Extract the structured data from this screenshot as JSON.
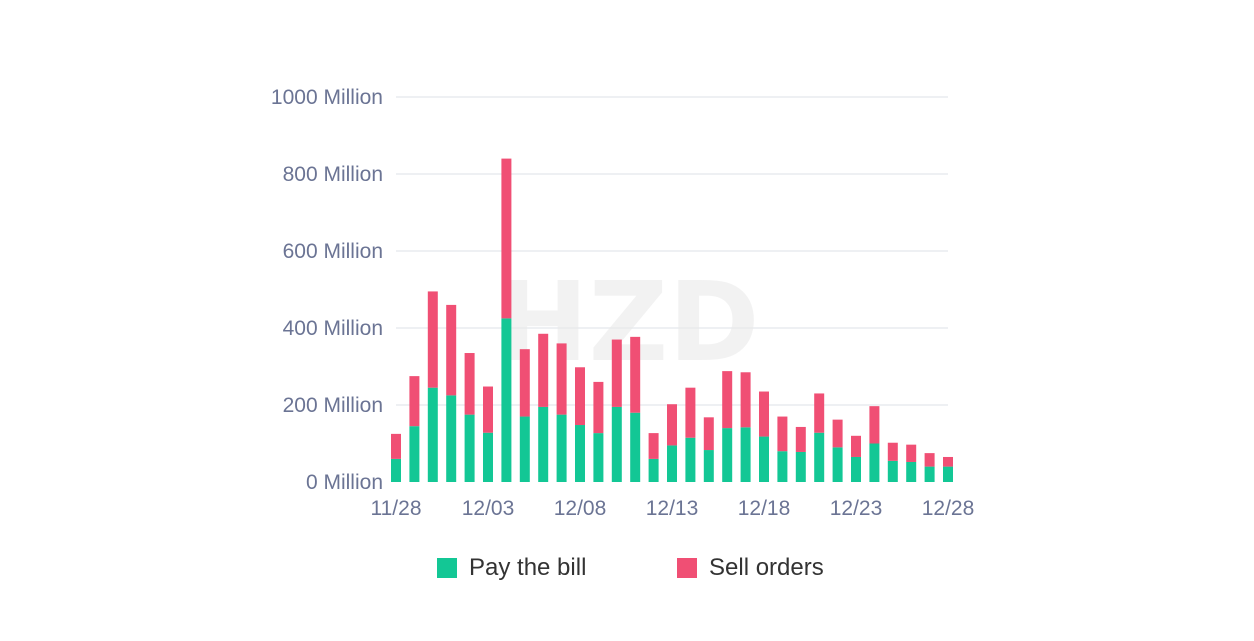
{
  "chart_data": {
    "type": "bar",
    "stacked": true,
    "x": [
      "11/28",
      "11/29",
      "11/30",
      "12/01",
      "12/02",
      "12/03",
      "12/04",
      "12/05",
      "12/06",
      "12/07",
      "12/08",
      "12/09",
      "12/10",
      "12/11",
      "12/12",
      "12/13",
      "12/14",
      "12/15",
      "12/16",
      "12/17",
      "12/18",
      "12/19",
      "12/20",
      "12/21",
      "12/22",
      "12/23",
      "12/24",
      "12/25",
      "12/26",
      "12/27",
      "12/28"
    ],
    "x_tick_labels": [
      "11/28",
      "12/03",
      "12/08",
      "12/13",
      "12/18",
      "12/23",
      "12/28"
    ],
    "series": [
      {
        "name": "Pay the bill",
        "color": "#13c795",
        "values": [
          60,
          145,
          245,
          225,
          175,
          128,
          425,
          170,
          195,
          175,
          148,
          127,
          195,
          180,
          60,
          95,
          115,
          83,
          140,
          142,
          118,
          80,
          78,
          128,
          90,
          65,
          100,
          55,
          52,
          40,
          40
        ]
      },
      {
        "name": "Sell orders",
        "color": "#f04f74",
        "values": [
          65,
          130,
          250,
          235,
          160,
          120,
          415,
          175,
          190,
          185,
          150,
          133,
          175,
          197,
          67,
          107,
          130,
          85,
          148,
          143,
          117,
          90,
          65,
          102,
          72,
          55,
          97,
          47,
          45,
          35,
          25
        ]
      }
    ],
    "y_tick_labels": [
      "0 Million",
      "200 Million",
      "400 Million",
      "600 Million",
      "800 Million",
      "1000 Million"
    ],
    "ylim": [
      0,
      1000
    ],
    "ylabel": "",
    "xlabel": "",
    "grid": true,
    "legend_position": "bottom-center"
  },
  "watermark": "HZD"
}
